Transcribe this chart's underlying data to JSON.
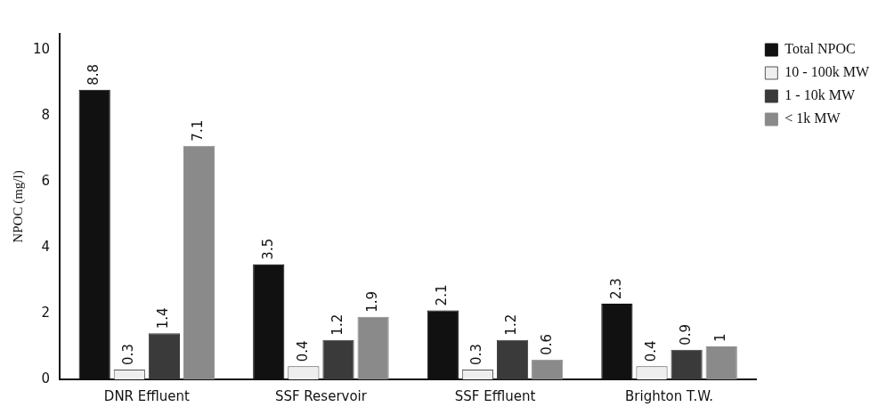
{
  "chart_data": {
    "type": "bar",
    "ylabel": "NPOC (mg/l)",
    "categories": [
      "DNR Effluent",
      "SSF Reservoir",
      "SSF Effluent",
      "Brighton T.W."
    ],
    "series": [
      {
        "name": "Total NPOC",
        "color": "#111111",
        "values": [
          8.8,
          3.5,
          2.1,
          2.3
        ]
      },
      {
        "name": "10 - 100k MW",
        "color": "#eeeeee",
        "values": [
          0.3,
          0.4,
          0.3,
          0.4
        ]
      },
      {
        "name": "1 - 10k MW",
        "color": "#3a3a3a",
        "values": [
          1.4,
          1.2,
          1.2,
          0.9
        ]
      },
      {
        "name": "< 1k MW",
        "color": "#8a8a8a",
        "values": [
          7.1,
          1.9,
          0.6,
          1
        ]
      }
    ],
    "ylim": [
      0,
      10.5
    ],
    "yticks": [
      0,
      2,
      4,
      6,
      8,
      10
    ],
    "grid": false,
    "legend": "top right",
    "data_labels": true
  }
}
